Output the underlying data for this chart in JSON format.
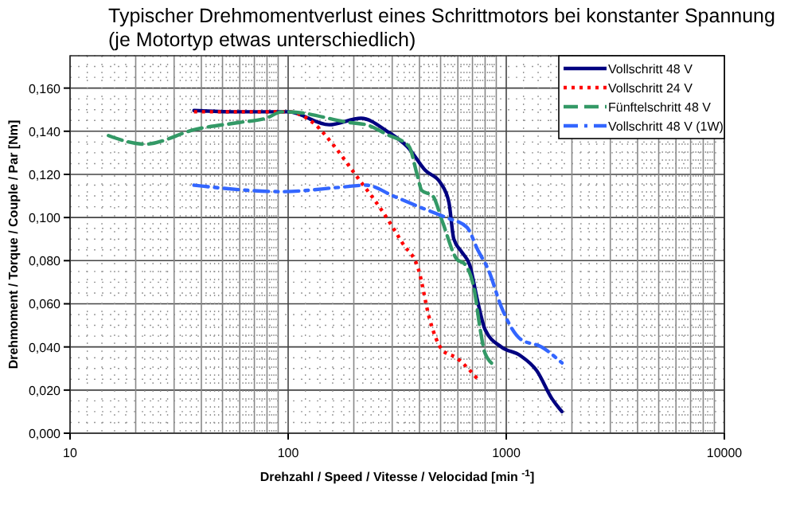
{
  "chart_data": {
    "type": "line",
    "title": "Typischer Drehmomentverlust eines Schrittmotors bei konstanter Spannung",
    "subtitle": "(je Motortyp etwas unterschiedlich)",
    "xlabel": "Drehzahl / Speed / Vitesse / Velocidad   [min $^{-1}$]",
    "ylabel": "Drehmoment / Torque / Couple / Par   [Nm]",
    "log": "x",
    "xlim": [
      10,
      10000
    ],
    "xticks": [
      10,
      100,
      1000,
      10000
    ],
    "ylim": [
      0,
      0.175
    ],
    "yticks": [
      {
        "value": 0,
        "label": "0,000"
      },
      {
        "value": 0.02,
        "label": "0,020"
      },
      {
        "value": 0.04,
        "label": "0,040"
      },
      {
        "value": 0.06,
        "label": "0,060"
      },
      {
        "value": 0.08,
        "label": "0,080"
      },
      {
        "value": 0.1,
        "label": "0,100"
      },
      {
        "value": 0.12,
        "label": "0,120"
      },
      {
        "value": 0.14,
        "label": "0,140"
      },
      {
        "value": 0.16,
        "label": "0,160"
      }
    ],
    "grid": true,
    "legend": "top right",
    "marker": "none",
    "series": [
      {
        "name": "Vollschritt 48 V",
        "color": "#000080",
        "line_style": "solid",
        "x": [
          37,
          60,
          100,
          154,
          216,
          284,
          358,
          424,
          500,
          546,
          575,
          625,
          680,
          740,
          800,
          950,
          1160,
          1380,
          1620,
          1800
        ],
        "values": [
          0.1496,
          0.149,
          0.149,
          0.143,
          0.146,
          0.14,
          0.132,
          0.122,
          0.116,
          0.107,
          0.09,
          0.084,
          0.078,
          0.061,
          0.048,
          0.04,
          0.036,
          0.029,
          0.016,
          0.01
        ]
      },
      {
        "name": "Vollschritt 24 V",
        "color": "#ff0000",
        "line_style": "dotted",
        "x": [
          37,
          60,
          100,
          130,
          163,
          203,
          270,
          335,
          397,
          445,
          510,
          590,
          740
        ],
        "values": [
          0.149,
          0.149,
          0.149,
          0.144,
          0.133,
          0.12,
          0.103,
          0.088,
          0.0755,
          0.053,
          0.0385,
          0.035,
          0.025
        ]
      },
      {
        "name": "Fünftelschritt 48 V",
        "color": "#339966",
        "line_style": "dashed",
        "x": [
          15,
          22,
          38,
          59,
          79,
          94,
          100,
          192,
          228,
          284,
          358,
          390,
          410,
          460,
          510,
          590,
          650,
          715,
          760,
          800,
          900
        ],
        "values": [
          0.138,
          0.134,
          0.141,
          0.144,
          0.146,
          0.149,
          0.149,
          0.144,
          0.143,
          0.1385,
          0.133,
          0.12,
          0.1125,
          0.11,
          0.098,
          0.081,
          0.078,
          0.066,
          0.048,
          0.037,
          0.031
        ]
      },
      {
        "name": "Vollschritt 48 V (1W)",
        "color": "#3366ff",
        "line_style": "dashdot",
        "x": [
          37,
          94,
          172,
          228,
          303,
          397,
          530,
          660,
          740,
          830,
          950,
          1160,
          1450,
          1800
        ],
        "values": [
          0.115,
          0.112,
          0.114,
          0.115,
          0.11,
          0.105,
          0.1,
          0.0955,
          0.085,
          0.0755,
          0.0585,
          0.0437,
          0.04,
          0.0326
        ]
      }
    ]
  }
}
